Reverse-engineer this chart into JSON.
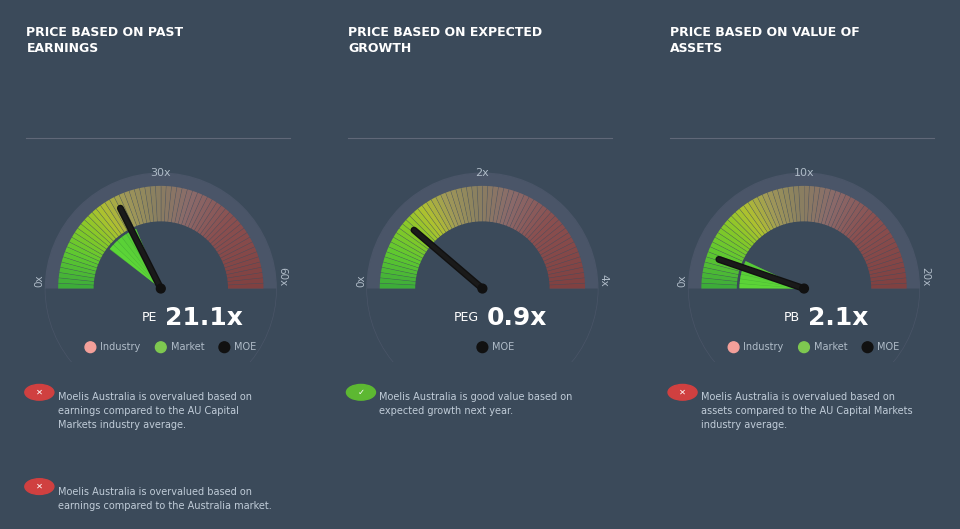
{
  "background_color": "#3b4a5a",
  "gauge_circle_color": "#4a5568",
  "text_color": "#ffffff",
  "label_color": "#b0bcc8",
  "panels": [
    {
      "title_line1": "PRICE BASED ON PAST",
      "title_line2": "EARNINGS",
      "metric": "PE",
      "value": 21.1,
      "value_str": "21.1",
      "min_val": 0,
      "max_val": 60,
      "mid_label": "30x",
      "left_label": "0x",
      "right_label": "60x",
      "industry_val": 20.8,
      "market_val": 22.5,
      "moe_val": 21.1,
      "industry_color": "#f4a09a",
      "market_color": "#7ec850",
      "moe_color": "#111111",
      "has_industry": true,
      "has_market": true,
      "legend": [
        "Industry",
        "Market",
        "MOE"
      ],
      "notes": [
        "Moelis Australia is overvalued based on\nearnings compared to the AU Capital\nMarkets industry average.",
        "Moelis Australia is overvalued based on\nearnings compared to the Australia market."
      ],
      "note_icons": [
        "red",
        "red"
      ]
    },
    {
      "title_line1": "PRICE BASED ON EXPECTED",
      "title_line2": "GROWTH",
      "metric": "PEG",
      "value": 0.9,
      "value_str": "0.9",
      "min_val": 0,
      "max_val": 4,
      "mid_label": "2x",
      "left_label": "0x",
      "right_label": "4x",
      "industry_val": null,
      "market_val": null,
      "moe_val": 0.9,
      "industry_color": "#f4a09a",
      "market_color": "#7ec850",
      "moe_color": "#111111",
      "has_industry": false,
      "has_market": false,
      "legend": [
        "MOE"
      ],
      "notes": [
        "Moelis Australia is good value based on\nexpected growth next year."
      ],
      "note_icons": [
        "green"
      ]
    },
    {
      "title_line1": "PRICE BASED ON VALUE OF",
      "title_line2": "ASSETS",
      "metric": "PB",
      "value": 2.1,
      "value_str": "2.1",
      "min_val": 0,
      "max_val": 20,
      "mid_label": "10x",
      "left_label": "0x",
      "right_label": "20x",
      "industry_val": 2.3,
      "market_val": 2.8,
      "moe_val": 2.1,
      "industry_color": "#f4a09a",
      "market_color": "#7ec850",
      "moe_color": "#111111",
      "has_industry": true,
      "has_market": true,
      "legend": [
        "Industry",
        "Market",
        "MOE"
      ],
      "notes": [
        "Moelis Australia is overvalued based on\nassets compared to the AU Capital Markets\nindustry average."
      ],
      "note_icons": [
        "red"
      ]
    }
  ],
  "gauge_colors": [
    [
      0.0,
      "#3aaa3a"
    ],
    [
      0.12,
      "#5ec830"
    ],
    [
      0.22,
      "#88c828"
    ],
    [
      0.3,
      "#b0c030"
    ],
    [
      0.38,
      "#a09858"
    ],
    [
      0.48,
      "#8a8060"
    ],
    [
      0.6,
      "#8a6a6a"
    ],
    [
      0.75,
      "#8a5050"
    ],
    [
      1.0,
      "#804040"
    ]
  ]
}
